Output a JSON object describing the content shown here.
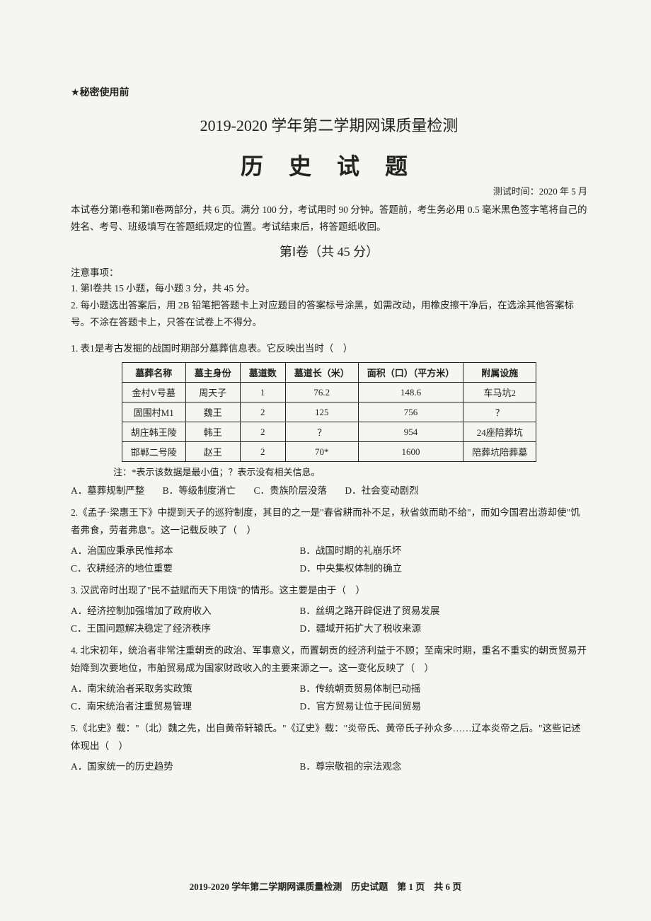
{
  "confidential": {
    "prefix": "★",
    "bold": "秘密使用前"
  },
  "main_title": "2019-2020 学年第二学期网课质量检测",
  "subject_title": "历 史 试 题",
  "test_time": "测试时间：2020 年 5 月",
  "intro": "本试卷分第Ⅰ卷和第Ⅱ卷两部分，共 6 页。满分 100 分，考试用时 90 分钟。答题前，考生务必用 0.5 毫米黑色签字笔将自己的姓名、考号、班级填写在答题纸规定的位置。考试结束后，将答题纸收回。",
  "section1_heading": "第Ⅰ卷（共 45 分）",
  "notice_label": "注意事项：",
  "notice_1": "1. 第Ⅰ卷共 15 小题，每小题 3 分，共 45 分。",
  "notice_2": "2. 每小题选出答案后，用 2B 铅笔把答题卡上对应题目的答案标号涂黑，如需改动，用橡皮擦干净后，在选涂其他答案标号。不涂在答题卡上，只答在试卷上不得分。",
  "q1": {
    "stem": "1. 表1是考古发掘的战国时期部分墓葬信息表。它反映出当时（　）",
    "table": {
      "headers": [
        "墓葬名称",
        "墓主身份",
        "墓道数",
        "墓道长（米）",
        "面积（口）（平方米）",
        "附属设施"
      ],
      "rows": [
        [
          "金村V号墓",
          "周天子",
          "1",
          "76.2",
          "148.6",
          "车马坑2"
        ],
        [
          "固围村M1",
          "魏王",
          "2",
          "125",
          "756",
          "？"
        ],
        [
          "胡庄韩王陵",
          "韩王",
          "2",
          "？",
          "954",
          "24座陪葬坑"
        ],
        [
          "邯郸二号陵",
          "赵王",
          "2",
          "70*",
          "1600",
          "陪葬坑陪葬墓"
        ]
      ]
    },
    "note": "注：*表示该数据是最小值；？表示没有相关信息。",
    "opts": {
      "A": "A．墓葬规制严整",
      "B": "B．等级制度消亡",
      "C": "C．贵族阶层没落",
      "D": "D．社会变动剧烈"
    }
  },
  "q2": {
    "stem": "2.《孟子·梁惠王下》中提到天子的巡狩制度，其目的之一是\"春省耕而补不足，秋省敛而助不给\"，而如今国君出游却使\"饥者弗食，劳者弗息\"。这一记载反映了（　）",
    "opts": {
      "A": "A．治国应秉承民惟邦本",
      "B": "B．战国时期的礼崩乐坏",
      "C": "C．农耕经济的地位重要",
      "D": "D．中央集权体制的确立"
    }
  },
  "q3": {
    "stem": "3. 汉武帝时出现了\"民不益赋而天下用饶\"的情形。这主要是由于（　）",
    "opts": {
      "A": "A．经济控制加强增加了政府收入",
      "B": "B．丝绸之路开辟促进了贸易发展",
      "C": "C．王国问题解决稳定了经济秩序",
      "D": "D．疆域开拓扩大了税收来源"
    }
  },
  "q4": {
    "stem": "4. 北宋初年，统治者非常注重朝贡的政治、军事意义，而置朝贡的经济利益于不顾；至南宋时期，重名不重实的朝贡贸易开始降到次要地位，市舶贸易成为国家财政收入的主要来源之一。这一变化反映了（　）",
    "opts": {
      "A": "A．南宋统治者采取务实政策",
      "B": "B．传统朝贡贸易体制已动摇",
      "C": "C．南宋统治者注重贸易管理",
      "D": "D．官方贸易让位于民间贸易"
    }
  },
  "q5": {
    "stem": "5.《北史》载：\"（北）魏之先，出自黄帝轩辕氏。\"《辽史》载：\"炎帝氏、黄帝氏子孙众多……辽本炎帝之后。\"这些记述体现出（　）",
    "opts": {
      "A": "A．国家统一的历史趋势",
      "B": "B．尊宗敬祖的宗法观念"
    }
  },
  "footer": "2019-2020 学年第二学期网课质量检测　历史试题　第 1 页　共 6 页"
}
